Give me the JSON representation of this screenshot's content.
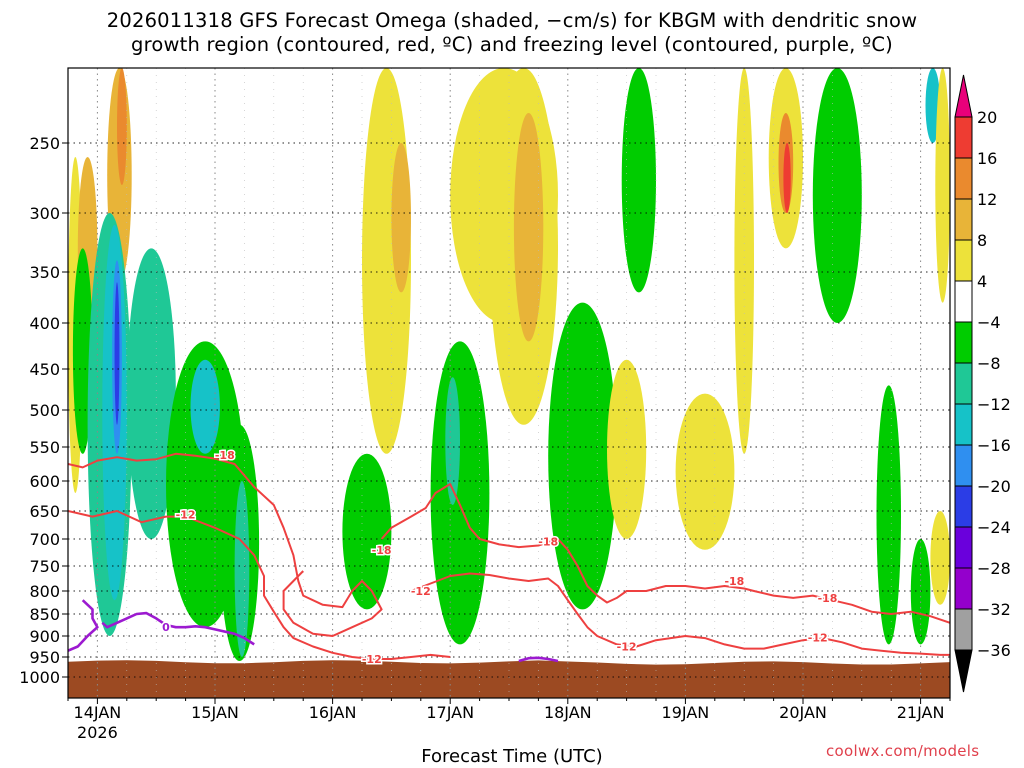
{
  "chart_data": {
    "type": "heatmap",
    "title_line1": "2026011318 GFS Forecast Omega (shaded, −cm/s) for KBGM with dendritic snow",
    "title_line2": "growth region (contoured, red, ºC) and freezing level (contoured, purple, ºC)",
    "xlabel": "Forecast Time (UTC)",
    "ylabel": "",
    "x_unit": "hours from 2026-01-13 18Z",
    "xlim": [
      0,
      180
    ],
    "x_ticks": [
      {
        "x": 6,
        "label": "14JAN",
        "sub": "2026"
      },
      {
        "x": 30,
        "label": "15JAN",
        "sub": ""
      },
      {
        "x": 54,
        "label": "16JAN",
        "sub": ""
      },
      {
        "x": 78,
        "label": "17JAN",
        "sub": ""
      },
      {
        "x": 102,
        "label": "18JAN",
        "sub": ""
      },
      {
        "x": 126,
        "label": "19JAN",
        "sub": ""
      },
      {
        "x": 150,
        "label": "20JAN",
        "sub": ""
      },
      {
        "x": 174,
        "label": "21JAN",
        "sub": ""
      }
    ],
    "y_unit": "hPa",
    "ylim": [
      1050,
      200
    ],
    "y_ticks": [
      250,
      300,
      350,
      400,
      450,
      500,
      550,
      600,
      650,
      700,
      750,
      800,
      850,
      900,
      950,
      1000
    ],
    "colorbar": {
      "levels": [
        -36,
        -32,
        -28,
        -24,
        -20,
        -16,
        -12,
        -8,
        -4,
        4,
        8,
        12,
        16,
        20
      ],
      "colors": [
        "#a0a0a0",
        "#9400cc",
        "#6a00dc",
        "#2b3de6",
        "#2f8ff0",
        "#16c2c8",
        "#1fc896",
        "#00cc00",
        "#ffffff",
        "#ede23a",
        "#e8b438",
        "#ea8a2e",
        "#ee3c32",
        "#e00080"
      ],
      "under_color": "#000000",
      "over_color": "#e8007a"
    },
    "surface_color": "#9c4a22",
    "shading": [
      {
        "x0": 0,
        "x1": 3,
        "p0": 260,
        "p1": 620,
        "cat": 9
      },
      {
        "x0": 2,
        "x1": 6,
        "p0": 260,
        "p1": 420,
        "cat": 10
      },
      {
        "x0": 8,
        "x1": 13,
        "p0": 200,
        "p1": 360,
        "cat": 10
      },
      {
        "x0": 10,
        "x1": 12,
        "p0": 200,
        "p1": 280,
        "cat": 11
      },
      {
        "x0": 1,
        "x1": 5,
        "p0": 330,
        "p1": 560,
        "cat": 7
      },
      {
        "x0": 4,
        "x1": 13,
        "p0": 300,
        "p1": 900,
        "cat": 6
      },
      {
        "x0": 7,
        "x1": 12,
        "p0": 310,
        "p1": 820,
        "cat": 5
      },
      {
        "x0": 9,
        "x1": 11,
        "p0": 340,
        "p1": 560,
        "cat": 4
      },
      {
        "x0": 9.5,
        "x1": 10.5,
        "p0": 360,
        "p1": 520,
        "cat": 3
      },
      {
        "x0": 12,
        "x1": 22,
        "p0": 330,
        "p1": 700,
        "cat": 6
      },
      {
        "x0": 20,
        "x1": 36,
        "p0": 420,
        "p1": 880,
        "cat": 7
      },
      {
        "x0": 25,
        "x1": 31,
        "p0": 440,
        "p1": 560,
        "cat": 5
      },
      {
        "x0": 31,
        "x1": 39,
        "p0": 520,
        "p1": 960,
        "cat": 7
      },
      {
        "x0": 34,
        "x1": 37,
        "p0": 600,
        "p1": 950,
        "cat": 6
      },
      {
        "x0": 50,
        "x1": 55,
        "p0": 200,
        "p1": 380,
        "cat": 8
      },
      {
        "x0": 60,
        "x1": 70,
        "p0": 200,
        "p1": 560,
        "cat": 9
      },
      {
        "x0": 66,
        "x1": 70,
        "p0": 250,
        "p1": 370,
        "cat": 10
      },
      {
        "x0": 56,
        "x1": 66,
        "p0": 560,
        "p1": 840,
        "cat": 7
      },
      {
        "x0": 74,
        "x1": 86,
        "p0": 420,
        "p1": 920,
        "cat": 7
      },
      {
        "x0": 77,
        "x1": 80,
        "p0": 460,
        "p1": 640,
        "cat": 6
      },
      {
        "x0": 78,
        "x1": 100,
        "p0": 200,
        "p1": 400,
        "cat": 9
      },
      {
        "x0": 86,
        "x1": 100,
        "p0": 200,
        "p1": 520,
        "cat": 9
      },
      {
        "x0": 91,
        "x1": 97,
        "p0": 230,
        "p1": 420,
        "cat": 10
      },
      {
        "x0": 98,
        "x1": 112,
        "p0": 380,
        "p1": 840,
        "cat": 7
      },
      {
        "x0": 110,
        "x1": 118,
        "p0": 440,
        "p1": 700,
        "cat": 9
      },
      {
        "x0": 113,
        "x1": 120,
        "p0": 200,
        "p1": 370,
        "cat": 7
      },
      {
        "x0": 124,
        "x1": 136,
        "p0": 480,
        "p1": 720,
        "cat": 9
      },
      {
        "x0": 136,
        "x1": 140,
        "p0": 200,
        "p1": 560,
        "cat": 9
      },
      {
        "x0": 143,
        "x1": 150,
        "p0": 200,
        "p1": 330,
        "cat": 9
      },
      {
        "x0": 145,
        "x1": 148,
        "p0": 230,
        "p1": 300,
        "cat": 11
      },
      {
        "x0": 146,
        "x1": 147.5,
        "p0": 250,
        "p1": 300,
        "cat": 12
      },
      {
        "x0": 152,
        "x1": 162,
        "p0": 200,
        "p1": 400,
        "cat": 7
      },
      {
        "x0": 165,
        "x1": 170,
        "p0": 470,
        "p1": 920,
        "cat": 7
      },
      {
        "x0": 172,
        "x1": 176,
        "p0": 700,
        "p1": 920,
        "cat": 7
      },
      {
        "x0": 175,
        "x1": 178,
        "p0": 200,
        "p1": 250,
        "cat": 5
      },
      {
        "x0": 176,
        "x1": 180,
        "p0": 650,
        "p1": 830,
        "cat": 9
      },
      {
        "x0": 177,
        "x1": 180,
        "p0": 200,
        "p1": 380,
        "cat": 9
      }
    ],
    "contours": [
      {
        "label": "-18",
        "color": "red",
        "points": [
          [
            0,
            575
          ],
          [
            3,
            580
          ],
          [
            6,
            570
          ],
          [
            10,
            565
          ],
          [
            14,
            570
          ],
          [
            18,
            568
          ],
          [
            22,
            560
          ],
          [
            26,
            563
          ],
          [
            30,
            567
          ],
          [
            34,
            575
          ],
          [
            38,
            610
          ],
          [
            42,
            640
          ],
          [
            44,
            680
          ],
          [
            46,
            730
          ],
          [
            47,
            780
          ],
          [
            48,
            810
          ],
          [
            52,
            830
          ],
          [
            56,
            835
          ],
          [
            58,
            800
          ],
          [
            60,
            780
          ],
          [
            62,
            800
          ],
          [
            64,
            840
          ],
          [
            62,
            860
          ],
          [
            58,
            880
          ],
          [
            54,
            900
          ],
          [
            50,
            895
          ],
          [
            46,
            870
          ],
          [
            44,
            840
          ],
          [
            44,
            800
          ],
          [
            48,
            760
          ]
        ]
      },
      {
        "label": "-12",
        "color": "red",
        "points": [
          [
            0,
            650
          ],
          [
            5,
            660
          ],
          [
            10,
            650
          ],
          [
            15,
            670
          ],
          [
            20,
            660
          ],
          [
            24,
            660
          ],
          [
            30,
            680
          ],
          [
            35,
            700
          ],
          [
            38,
            730
          ],
          [
            40,
            770
          ],
          [
            40,
            810
          ],
          [
            42,
            845
          ],
          [
            44,
            880
          ],
          [
            46,
            905
          ],
          [
            50,
            925
          ],
          [
            54,
            940
          ],
          [
            58,
            950
          ],
          [
            62,
            955
          ],
          [
            66,
            955
          ],
          [
            70,
            950
          ],
          [
            74,
            945
          ],
          [
            78,
            950
          ]
        ]
      },
      {
        "label": "-18",
        "color": "red",
        "points": [
          [
            64,
            700
          ],
          [
            66,
            680
          ],
          [
            70,
            660
          ],
          [
            73,
            645
          ],
          [
            75,
            620
          ],
          [
            78,
            605
          ],
          [
            80,
            640
          ],
          [
            82,
            680
          ],
          [
            84,
            700
          ],
          [
            88,
            710
          ],
          [
            92,
            715
          ],
          [
            96,
            712
          ],
          [
            100,
            700
          ],
          [
            102,
            720
          ],
          [
            104,
            750
          ],
          [
            106,
            790
          ],
          [
            108,
            810
          ],
          [
            110,
            825
          ],
          [
            112,
            815
          ],
          [
            114,
            800
          ],
          [
            118,
            800
          ],
          [
            122,
            790
          ],
          [
            126,
            790
          ],
          [
            130,
            795
          ],
          [
            134,
            790
          ],
          [
            138,
            795
          ],
          [
            140,
            800
          ],
          [
            144,
            810
          ],
          [
            148,
            815
          ],
          [
            152,
            810
          ],
          [
            156,
            820
          ],
          [
            160,
            830
          ],
          [
            164,
            845
          ],
          [
            168,
            850
          ],
          [
            172,
            845
          ],
          [
            176,
            855
          ],
          [
            180,
            870
          ]
        ]
      },
      {
        "label": "-12",
        "color": "red",
        "points": [
          [
            70,
            800
          ],
          [
            74,
            785
          ],
          [
            78,
            770
          ],
          [
            82,
            765
          ],
          [
            86,
            768
          ],
          [
            90,
            775
          ],
          [
            94,
            780
          ],
          [
            98,
            775
          ],
          [
            100,
            790
          ],
          [
            102,
            820
          ],
          [
            104,
            850
          ],
          [
            106,
            880
          ],
          [
            108,
            900
          ],
          [
            112,
            920
          ],
          [
            116,
            925
          ],
          [
            120,
            910
          ],
          [
            126,
            900
          ],
          [
            130,
            905
          ],
          [
            134,
            920
          ],
          [
            138,
            930
          ],
          [
            142,
            930
          ],
          [
            146,
            920
          ],
          [
            150,
            910
          ],
          [
            154,
            905
          ],
          [
            158,
            915
          ],
          [
            162,
            930
          ],
          [
            166,
            935
          ],
          [
            170,
            940
          ],
          [
            174,
            942
          ],
          [
            178,
            945
          ],
          [
            180,
            945
          ]
        ]
      },
      {
        "label": "0",
        "color": "purple",
        "points": [
          [
            3,
            820
          ],
          [
            4,
            830
          ],
          [
            5,
            840
          ],
          [
            5,
            860
          ],
          [
            6,
            880
          ],
          [
            4,
            900
          ],
          [
            2,
            925
          ],
          [
            0,
            935
          ]
        ]
      },
      {
        "label": "0",
        "color": "purple",
        "points": [
          [
            7,
            870
          ],
          [
            8,
            880
          ],
          [
            10,
            870
          ],
          [
            12,
            860
          ],
          [
            14,
            850
          ],
          [
            16,
            848
          ],
          [
            18,
            860
          ],
          [
            20,
            875
          ],
          [
            22,
            880
          ],
          [
            24,
            880
          ],
          [
            26,
            878
          ],
          [
            28,
            880
          ],
          [
            30,
            885
          ],
          [
            34,
            895
          ],
          [
            36,
            905
          ],
          [
            38,
            920
          ]
        ]
      },
      {
        "label": "",
        "color": "purple",
        "points": [
          [
            92,
            960
          ],
          [
            94,
            953
          ],
          [
            96,
            952
          ],
          [
            98,
            955
          ],
          [
            100,
            960
          ]
        ]
      }
    ],
    "contour_labels": [
      {
        "text": "-18",
        "x": 32,
        "p": 562
      },
      {
        "text": "-12",
        "x": 24,
        "p": 656
      },
      {
        "text": "-18",
        "x": 64,
        "p": 720
      },
      {
        "text": "-12",
        "x": 72,
        "p": 800
      },
      {
        "text": "-12",
        "x": 62,
        "p": 955
      },
      {
        "text": "-18",
        "x": 98,
        "p": 705
      },
      {
        "text": "-12",
        "x": 114,
        "p": 925
      },
      {
        "text": "-18",
        "x": 136,
        "p": 780
      },
      {
        "text": "-18",
        "x": 155,
        "p": 815
      },
      {
        "text": "-12",
        "x": 153,
        "p": 903
      },
      {
        "text": "0",
        "x": 20,
        "p": 880
      }
    ]
  },
  "credit": "coolwx.com/models"
}
